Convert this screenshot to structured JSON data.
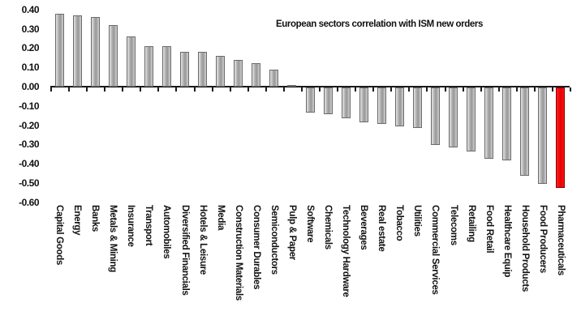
{
  "title": "European sectors correlation with ISM new orders",
  "colors": {
    "background": "#ffffff",
    "bar_default_gray": "#a8a8a8",
    "bar_highlight_red": "#ee1111",
    "axis_black": "#1a1a1a",
    "text_black": "#111111"
  },
  "chart_data": {
    "type": "bar",
    "title": "European sectors correlation with ISM new orders",
    "xlabel": "",
    "ylabel": "",
    "ylim": [
      -0.6,
      0.4
    ],
    "ytick_step": 0.1,
    "ytick_labels": [
      "0.40",
      "0.30",
      "0.20",
      "0.10",
      "0.00",
      "-0.10",
      "-0.20",
      "-0.30",
      "-0.40",
      "-0.50",
      "-0.60"
    ],
    "grid": false,
    "legend": false,
    "bar_orientation": "vertical",
    "highlight_category": "Pharmaceuticals",
    "categories": [
      "Capital Goods",
      "Energy",
      "Banks",
      "Metals & Mining",
      "Insurance",
      "Transport",
      "Automobiles",
      "Diversified Financials",
      "Hotels & Leisure",
      "Media",
      "Construction Materials",
      "Consumer Durables",
      "Semiconductors",
      "Pulp & Paper",
      "Software",
      "Chemicals",
      "Technology Hardware",
      "Beverages",
      "Real estate",
      "Tobacco",
      "Utilities",
      "Commercial Services",
      "Telecoms",
      "Retailing",
      "Food Retail",
      "Healthcare Equip",
      "Household Products",
      "Food Producers",
      "Pharmaceuticals"
    ],
    "values": [
      0.38,
      0.37,
      0.36,
      0.32,
      0.26,
      0.21,
      0.21,
      0.18,
      0.18,
      0.16,
      0.14,
      0.12,
      0.09,
      0.01,
      -0.13,
      -0.14,
      -0.16,
      -0.18,
      -0.19,
      -0.2,
      -0.21,
      -0.3,
      -0.31,
      -0.33,
      -0.37,
      -0.38,
      -0.46,
      -0.5,
      -0.52
    ]
  }
}
